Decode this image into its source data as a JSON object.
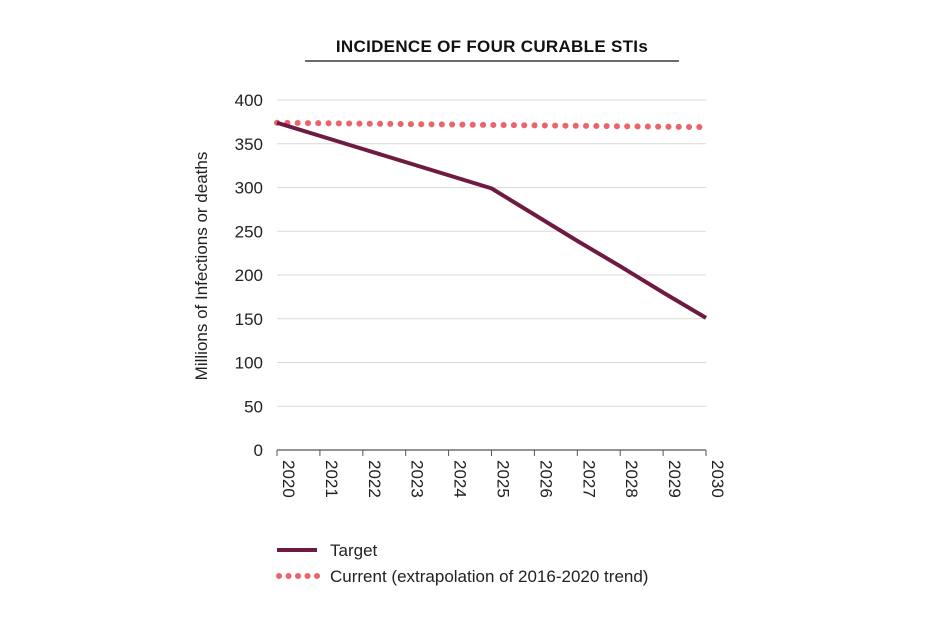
{
  "chart_data": {
    "type": "line",
    "title": "INCIDENCE OF FOUR CURABLE STIs",
    "ylabel": "Millions of Infections or deaths",
    "xlabel": "",
    "ylim": [
      0,
      400
    ],
    "yticks": [
      0,
      50,
      100,
      150,
      200,
      250,
      300,
      350,
      400
    ],
    "x": [
      "2020",
      "2021",
      "2022",
      "2023",
      "2024",
      "2025",
      "2026",
      "2027",
      "2028",
      "2029",
      "2030"
    ],
    "grid": true,
    "legend_position": "bottom-left",
    "series": [
      {
        "name": "Target",
        "style": "solid",
        "color": "#6e1a43",
        "values": [
          374,
          359,
          344,
          329,
          314,
          299,
          269,
          239,
          210,
          180,
          151
        ]
      },
      {
        "name": "Current (extrapolation of 2016-2020 trend)",
        "style": "dotted",
        "color": "#e8666a",
        "values": [
          374,
          373.5,
          373,
          372.5,
          372,
          371.5,
          371,
          370.5,
          370,
          369.5,
          369
        ]
      }
    ]
  }
}
